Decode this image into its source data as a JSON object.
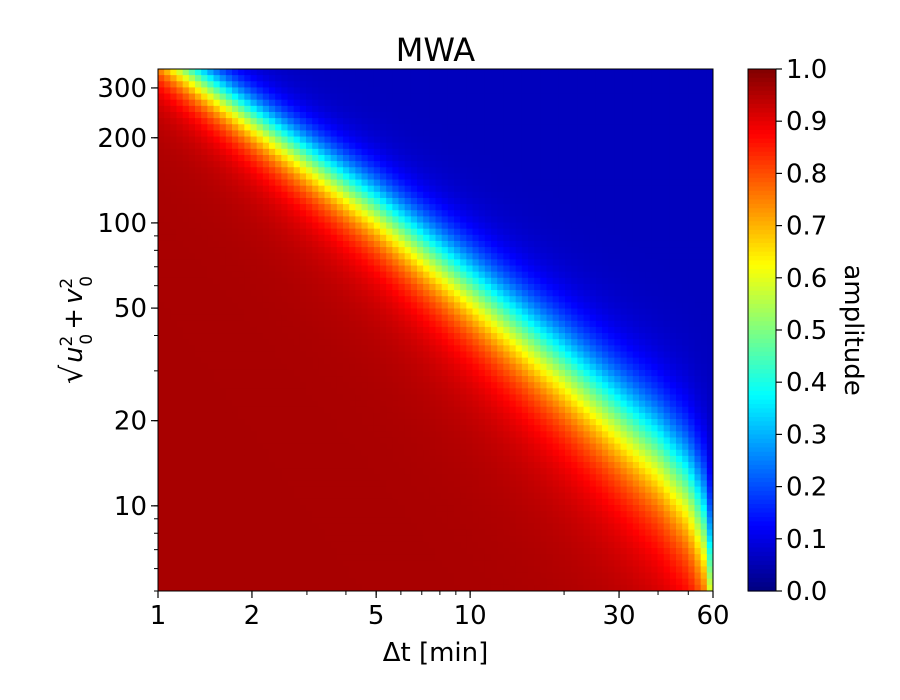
{
  "chart_data": {
    "type": "heatmap",
    "title": "MWA",
    "xlabel": "Δt [min]",
    "ylabel": "√(u0² + v0²)",
    "x_scale": "log",
    "y_scale": "log",
    "xlim": [
      1,
      60
    ],
    "ylim": [
      5,
      350
    ],
    "x_ticks": [
      1,
      2,
      5,
      10,
      30,
      60
    ],
    "x_tick_labels": [
      "1",
      "2",
      "5",
      "10",
      "30",
      "60"
    ],
    "y_ticks": [
      10,
      20,
      50,
      100,
      200,
      300
    ],
    "y_tick_labels": [
      "10",
      "20",
      "50",
      "100",
      "200",
      "300"
    ],
    "colormap": "jet",
    "colorbar": {
      "label": "amplitude",
      "range": [
        0.0,
        1.0
      ],
      "ticks": [
        0.0,
        0.1,
        0.2,
        0.3,
        0.4,
        0.5,
        0.6,
        0.7,
        0.8,
        0.9,
        1.0
      ],
      "tick_labels": [
        "0.0",
        "0.1",
        "0.2",
        "0.3",
        "0.4",
        "0.5",
        "0.6",
        "0.7",
        "0.8",
        "0.9",
        "1.0"
      ]
    },
    "contour_amplitude_0_5": [
      {
        "x": 1.2,
        "y": 350
      },
      {
        "x": 5,
        "y": 110
      },
      {
        "x": 10,
        "y": 58
      },
      {
        "x": 20,
        "y": 30
      },
      {
        "x": 30,
        "y": 20
      },
      {
        "x": 40,
        "y": 15
      },
      {
        "x": 50,
        "y": 11
      },
      {
        "x": 56,
        "y": 8
      },
      {
        "x": 60,
        "y": 5
      }
    ]
  }
}
